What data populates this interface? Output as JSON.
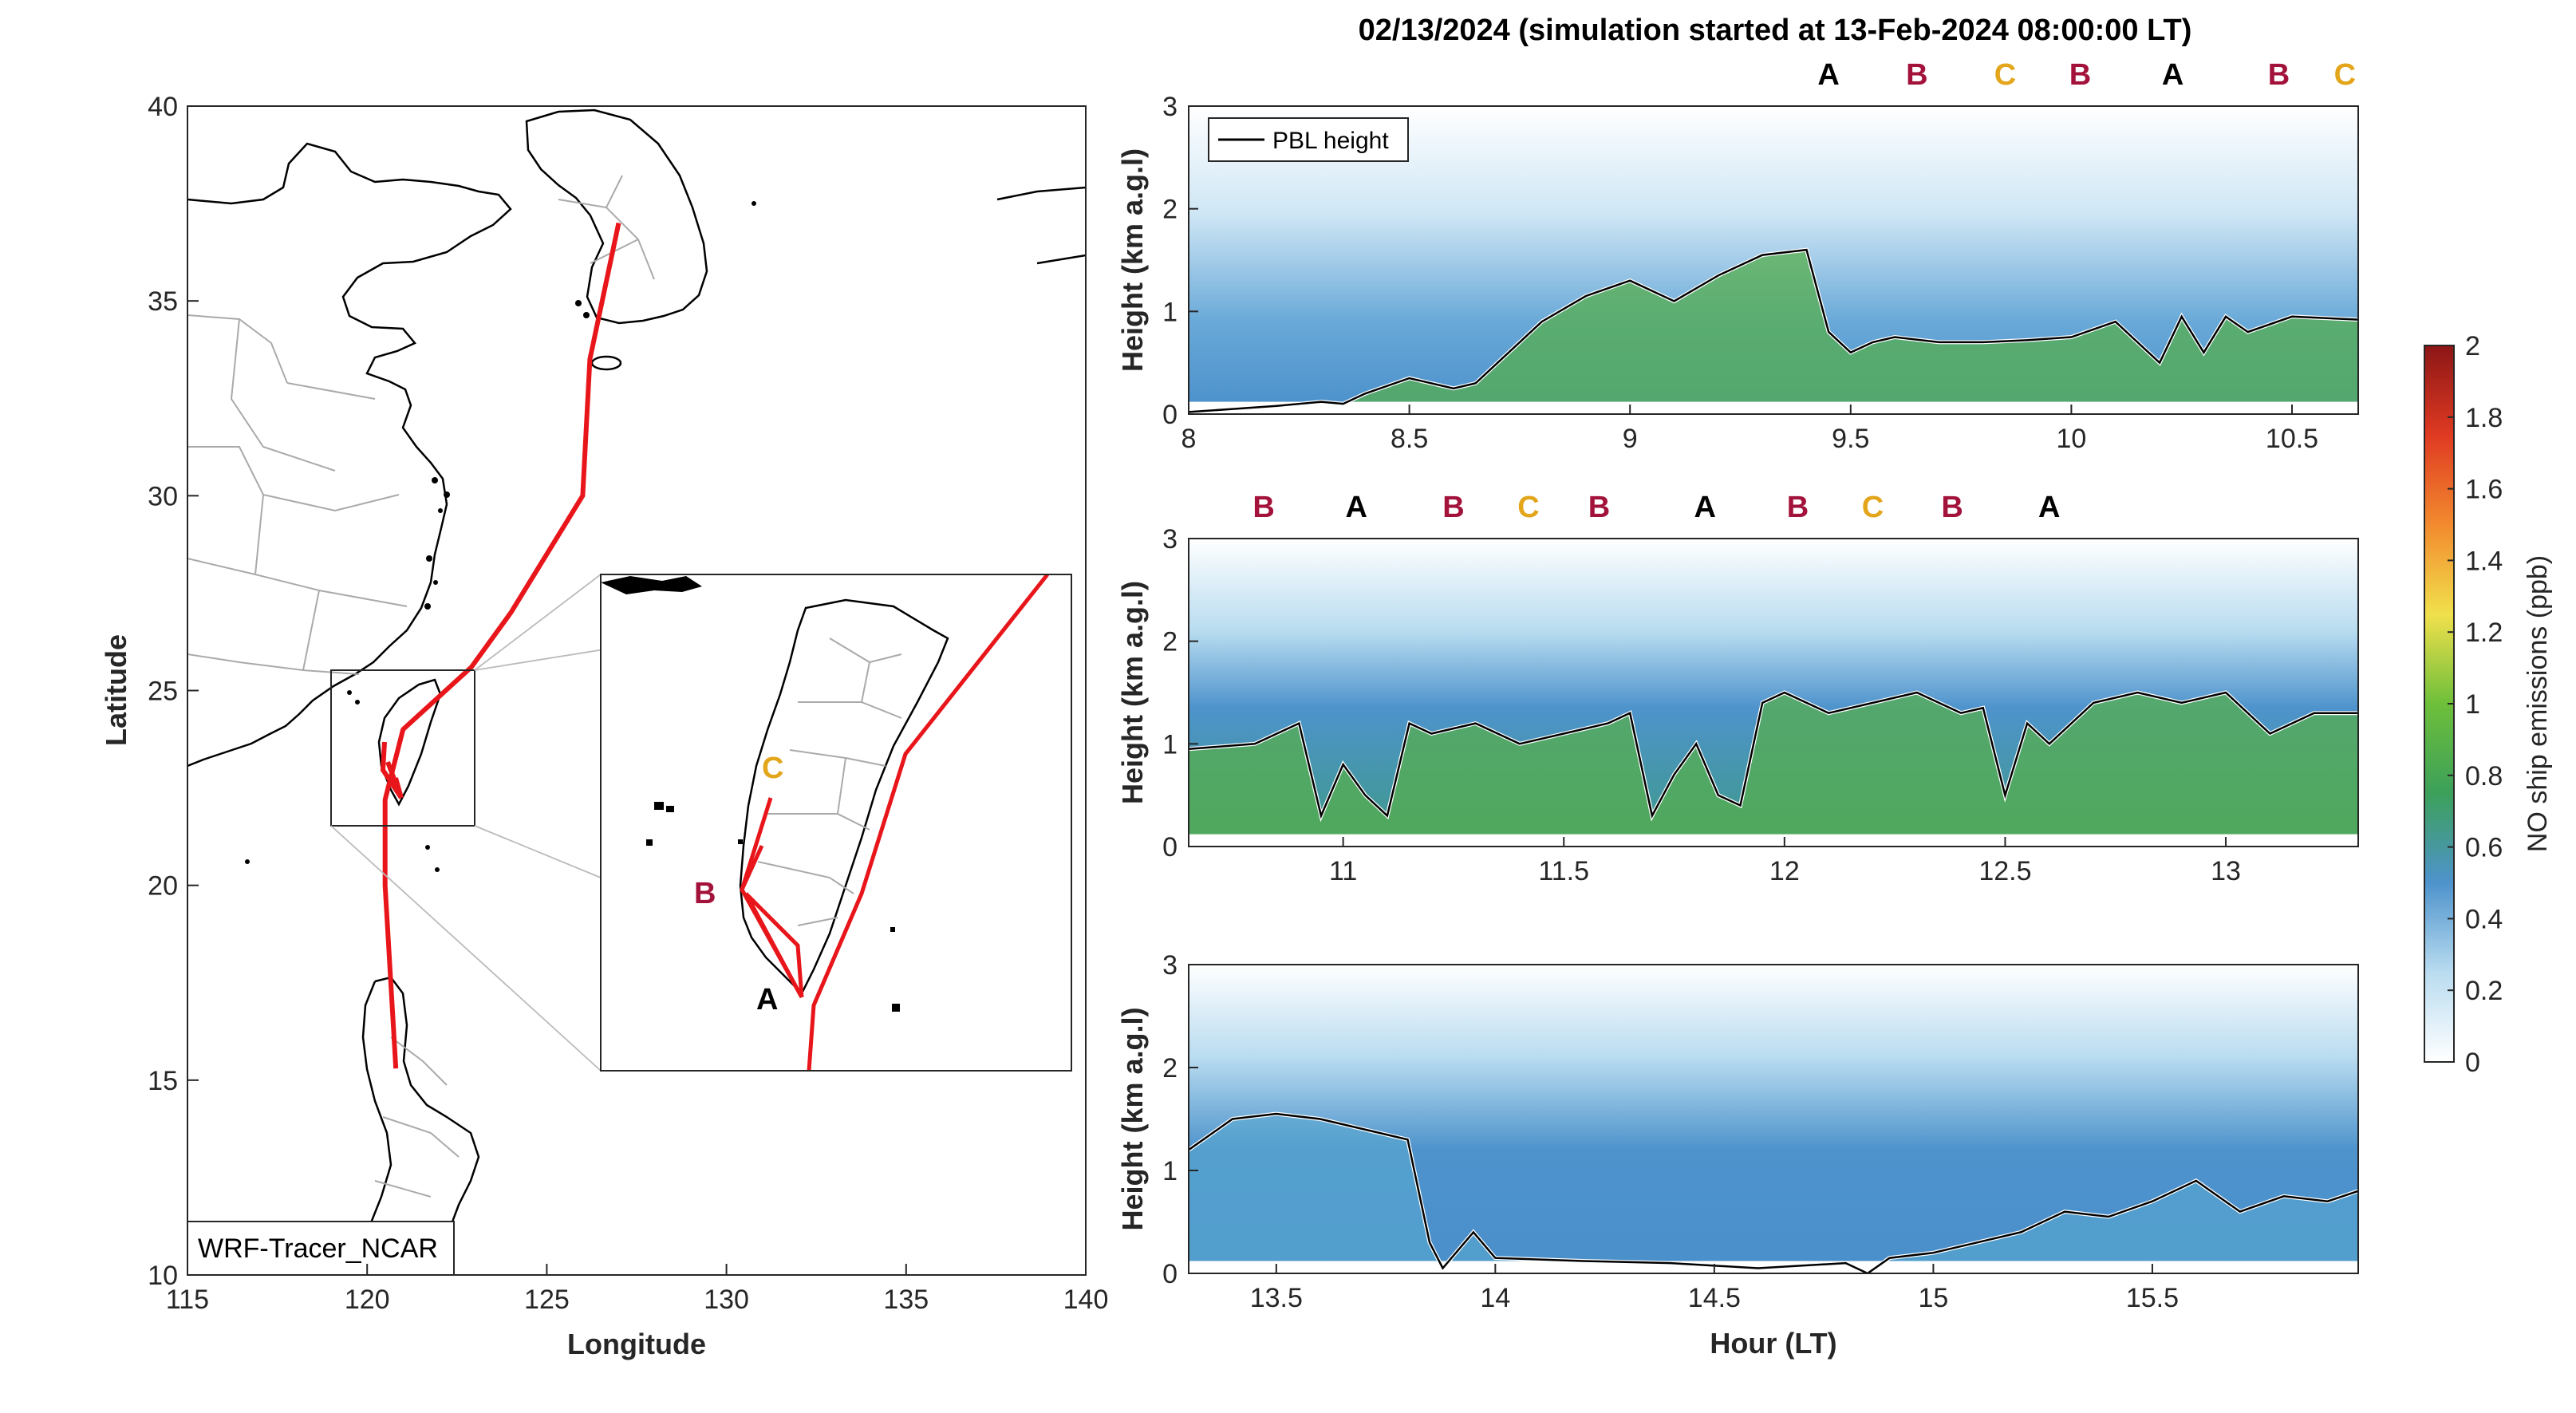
{
  "figure": {
    "title": "02/13/2024 (simulation started at 13-Feb-2024 08:00:00 LT)"
  },
  "colors": {
    "route": "#e8161b",
    "marker_A": "#000000",
    "marker_B": "#a3123a",
    "marker_C": "#e3a51a",
    "coast": "#000000",
    "boundary": "#aaaaaa",
    "pbl_line": "#000000"
  },
  "map": {
    "xlabel": "Longitude",
    "ylabel": "Latitude",
    "xlim": [
      115,
      140
    ],
    "ylim": [
      10,
      40
    ],
    "xticks": [
      "115",
      "120",
      "125",
      "130",
      "135",
      "140"
    ],
    "yticks": [
      "10",
      "15",
      "20",
      "25",
      "30",
      "35",
      "40"
    ],
    "model_label": "WRF-Tracer_NCAR",
    "route_lonlat": [
      [
        127.0,
        37.0
      ],
      [
        126.2,
        33.5
      ],
      [
        126.0,
        30.0
      ],
      [
        124.0,
        27.0
      ],
      [
        122.9,
        25.6
      ],
      [
        121.0,
        24.0
      ],
      [
        120.5,
        22.2
      ],
      [
        120.5,
        20.0
      ],
      [
        120.8,
        15.3
      ]
    ],
    "inset_box": {
      "lon": [
        119.0,
        122.5
      ],
      "lat": [
        21.5,
        25.5
      ]
    },
    "inset_labels": [
      {
        "text": "C",
        "color": "#e3a51a"
      },
      {
        "text": "B",
        "color": "#a3123a"
      },
      {
        "text": "A",
        "color": "#000000"
      }
    ]
  },
  "chart_data": [
    {
      "type": "heatmap",
      "panel": "top",
      "xlim": [
        8.0,
        10.65
      ],
      "ylim": [
        0,
        3
      ],
      "xticks": [
        "8",
        "8.5",
        "9",
        "9.5",
        "10",
        "10.5"
      ],
      "yticks": [
        "0",
        "1",
        "2",
        "3"
      ],
      "ylabel": "Height (km a.g.l)",
      "legend": "PBL height",
      "series": [
        {
          "name": "PBL height",
          "x": [
            8.0,
            8.1,
            8.2,
            8.3,
            8.35,
            8.4,
            8.5,
            8.6,
            8.65,
            8.7,
            8.8,
            8.9,
            9.0,
            9.1,
            9.2,
            9.3,
            9.4,
            9.45,
            9.5,
            9.55,
            9.6,
            9.7,
            9.8,
            9.9,
            10.0,
            10.1,
            10.2,
            10.25,
            10.3,
            10.35,
            10.4,
            10.5,
            10.65
          ],
          "y": [
            0.02,
            0.05,
            0.08,
            0.12,
            0.1,
            0.2,
            0.35,
            0.25,
            0.3,
            0.5,
            0.9,
            1.15,
            1.3,
            1.1,
            1.35,
            1.55,
            1.6,
            0.8,
            0.6,
            0.7,
            0.75,
            0.7,
            0.7,
            0.72,
            0.75,
            0.9,
            0.5,
            0.95,
            0.6,
            0.95,
            0.8,
            0.95,
            0.92
          ]
        }
      ],
      "markers": [
        {
          "x": 9.45,
          "label": "A"
        },
        {
          "x": 9.65,
          "label": "B"
        },
        {
          "x": 9.85,
          "label": "C"
        },
        {
          "x": 10.02,
          "label": "B"
        },
        {
          "x": 10.23,
          "label": "A"
        },
        {
          "x": 10.47,
          "label": "B"
        },
        {
          "x": 10.62,
          "label": "C"
        }
      ]
    },
    {
      "type": "heatmap",
      "panel": "middle",
      "xlim": [
        10.65,
        13.3
      ],
      "ylim": [
        0,
        3
      ],
      "xticks": [
        "11",
        "11.5",
        "12",
        "12.5",
        "13"
      ],
      "yticks": [
        "0",
        "1",
        "2",
        "3"
      ],
      "ylabel": "Height (km a.g.l)",
      "series": [
        {
          "name": "PBL height",
          "x": [
            10.65,
            10.8,
            10.9,
            10.95,
            11.0,
            11.05,
            11.1,
            11.15,
            11.2,
            11.3,
            11.4,
            11.5,
            11.6,
            11.65,
            11.7,
            11.75,
            11.8,
            11.85,
            11.9,
            11.95,
            12.0,
            12.1,
            12.2,
            12.3,
            12.4,
            12.45,
            12.5,
            12.55,
            12.6,
            12.7,
            12.8,
            12.9,
            13.0,
            13.1,
            13.2,
            13.3
          ],
          "y": [
            0.95,
            1.0,
            1.2,
            0.3,
            0.8,
            0.5,
            0.3,
            1.2,
            1.1,
            1.2,
            1.0,
            1.1,
            1.2,
            1.3,
            0.3,
            0.7,
            1.0,
            0.5,
            0.4,
            1.4,
            1.5,
            1.3,
            1.4,
            1.5,
            1.3,
            1.35,
            0.5,
            1.2,
            1.0,
            1.4,
            1.5,
            1.4,
            1.5,
            1.1,
            1.3,
            1.3
          ]
        }
      ],
      "markers": [
        {
          "x": 10.82,
          "label": "B"
        },
        {
          "x": 11.03,
          "label": "A"
        },
        {
          "x": 11.25,
          "label": "B"
        },
        {
          "x": 11.42,
          "label": "C"
        },
        {
          "x": 11.58,
          "label": "B"
        },
        {
          "x": 11.82,
          "label": "A"
        },
        {
          "x": 12.03,
          "label": "B"
        },
        {
          "x": 12.2,
          "label": "C"
        },
        {
          "x": 12.38,
          "label": "B"
        },
        {
          "x": 12.6,
          "label": "A"
        }
      ]
    },
    {
      "type": "heatmap",
      "panel": "bottom",
      "xlim": [
        13.3,
        15.97
      ],
      "ylim": [
        0,
        3
      ],
      "xticks": [
        "13.5",
        "14",
        "14.5",
        "15",
        "15.5"
      ],
      "yticks": [
        "0",
        "1",
        "2",
        "3"
      ],
      "ylabel": "Height (km a.g.l)",
      "xlabel": "Hour (LT)",
      "series": [
        {
          "name": "PBL height",
          "x": [
            13.3,
            13.4,
            13.5,
            13.6,
            13.7,
            13.8,
            13.85,
            13.88,
            13.95,
            14.0,
            14.2,
            14.4,
            14.6,
            14.8,
            14.85,
            14.9,
            15.0,
            15.1,
            15.2,
            15.3,
            15.4,
            15.5,
            15.6,
            15.7,
            15.8,
            15.9,
            15.97
          ],
          "y": [
            1.2,
            1.5,
            1.55,
            1.5,
            1.4,
            1.3,
            0.3,
            0.05,
            0.4,
            0.15,
            0.12,
            0.1,
            0.05,
            0.1,
            0.0,
            0.15,
            0.2,
            0.3,
            0.4,
            0.6,
            0.55,
            0.7,
            0.9,
            0.6,
            0.75,
            0.7,
            0.8
          ]
        }
      ]
    }
  ],
  "colorbar": {
    "label": "NO ship emissions (ppb)",
    "ticks": [
      "0",
      "0.2",
      "0.4",
      "0.6",
      "0.8",
      "1",
      "1.2",
      "1.4",
      "1.6",
      "1.8",
      "2"
    ],
    "stops": [
      "#ffffff",
      "#b9dcf0",
      "#4e93cc",
      "#3ca05a",
      "#6ebf3a",
      "#f1e04c",
      "#f28a2e",
      "#df3a22",
      "#8c1616"
    ]
  }
}
